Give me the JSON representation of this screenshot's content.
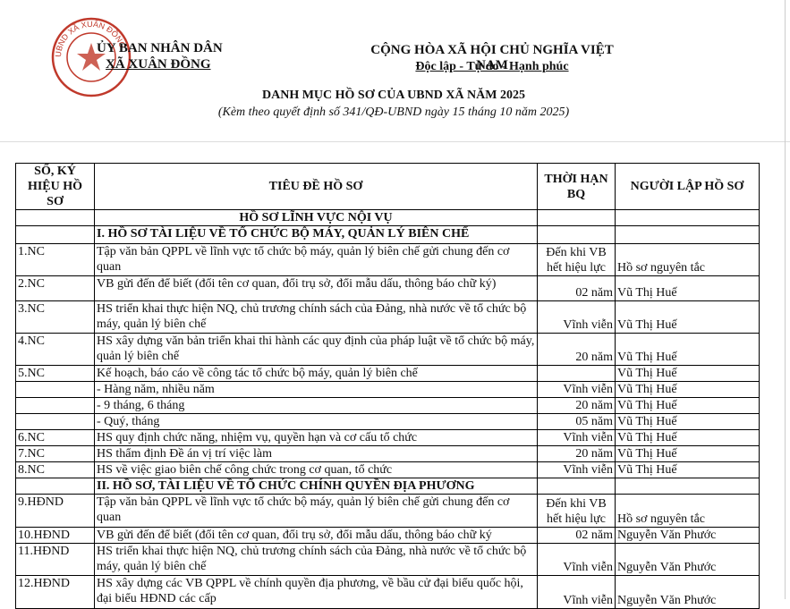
{
  "header": {
    "stamp": "UBND XÃ XUÂN ĐỒNG",
    "org_line1": "ỦY BAN NHÂN DÂN",
    "org_line2": "XÃ XUÂN ĐỒNG",
    "nation": "CỘNG HÒA XÃ HỘI CHỦ NGHĨA VIỆT NAM",
    "motto": "Độc lập - Tự do - Hạnh phúc",
    "title": "DANH MỤC HỒ SƠ CỦA UBND XÃ NĂM 2025",
    "subtitle": "(Kèm theo quyết định số 341/QĐ-UBND ngày  15 tháng 10 năm 2025)"
  },
  "table": {
    "columns": [
      "SỐ, KÝ HIỆU HỒ SƠ",
      "TIÊU ĐỀ HỒ SƠ",
      "THỜI HẠN BQ",
      "NGƯỜI LẬP HỒ SƠ"
    ],
    "rows": [
      {
        "section": "HỒ SƠ LĨNH VỰC NỘI VỤ"
      },
      {
        "section": "I. HỒ SƠ TÀI LIỆU VỀ TỔ CHỨC BỘ MÁY, QUẢN LÝ BIÊN CHẾ"
      },
      {
        "code": "1.NC",
        "title": "Tập văn bản QPPL về lĩnh vực tổ chức bộ máy, quản lý biên chế gửi chung đến cơ quan",
        "term": "Đến khi VB hết hiệu lực",
        "person": "Hồ sơ nguyên tắc"
      },
      {
        "code": "2.NC",
        "title": "VB gửi đến để biết (đổi tên cơ quan, đổi trụ sở, đổi mẫu dấu, thông báo chữ ký)",
        "term": "02 năm",
        "person": "Vũ Thị Huế"
      },
      {
        "code": "3.NC",
        "title": "HS triển khai thực hiện NQ, chủ trương chính sách của Đảng, nhà nước về tổ chức bộ máy, quản lý biên chế",
        "term": "Vĩnh viễn",
        "person": "Vũ Thị Huế"
      },
      {
        "code": "4.NC",
        "title": "HS xây dựng văn bản triển khai thi hành các quy định của pháp luật về tổ chức bộ máy, quản lý biên chế",
        "term": "20 năm",
        "person": "Vũ Thị Huế"
      },
      {
        "code": "5.NC",
        "title": "Kế hoạch, báo cáo về công tác tổ chức bộ máy, quản lý biên chế",
        "person": "Vũ Thị Huế"
      },
      {
        "title": "- Hàng năm, nhiều năm",
        "term": "Vĩnh viễn",
        "person": "Vũ Thị Huế"
      },
      {
        "title": "- 9 tháng, 6 tháng",
        "term": "20 năm",
        "person": "Vũ Thị Huế"
      },
      {
        "title": "- Quý, tháng",
        "term": "05 năm",
        "person": "Vũ Thị Huế"
      },
      {
        "code": "6.NC",
        "title": "HS quy định chức năng, nhiệm vụ, quyền hạn và cơ cấu tổ chức",
        "term": "Vĩnh viễn",
        "person": "Vũ Thị Huế"
      },
      {
        "code": "7.NC",
        "title": "HS thẩm định Đề án vị trí việc làm",
        "term": "20 năm",
        "person": "Vũ Thị Huế"
      },
      {
        "code": "8.NC",
        "title": "HS về việc giao biên chế công chức trong cơ quan, tổ chức",
        "term": "Vĩnh viễn",
        "person": "Vũ Thị Huế"
      },
      {
        "section": "II. HỒ SƠ, TÀI LIỆU VỀ TỔ CHỨC CHÍNH QUYỀN ĐỊA PHƯƠNG"
      },
      {
        "code": "9.HĐND",
        "title": "Tập văn bản QPPL về lĩnh vực tổ chức bộ máy, quản lý biên chế gửi chung đến cơ quan",
        "term": "Đến khi VB hết hiệu lực",
        "person": "Hồ sơ nguyên tắc"
      },
      {
        "code": "10.HĐND",
        "title": "VB gửi đến để biết (đổi tên cơ quan, đổi trụ sở, đổi mẫu dấu, thông báo chữ ký",
        "term": "02 năm",
        "person": "Nguyễn Văn Phước"
      },
      {
        "code": "11.HĐND",
        "title": "HS triển khai thực hiện NQ, chủ trương chính sách của Đảng, nhà nước về tổ chức bộ máy, quản lý biên chế",
        "term": "Vĩnh viễn",
        "person": "Nguyễn Văn Phước"
      },
      {
        "code": "12.HĐND",
        "title": "HS xây dựng các VB QPPL về chính quyền địa phương, về bầu cử đại biểu quốc hội, đại biểu HĐND các cấp",
        "term": "Vĩnh viễn",
        "person": "Nguyễn Văn Phước"
      }
    ]
  }
}
